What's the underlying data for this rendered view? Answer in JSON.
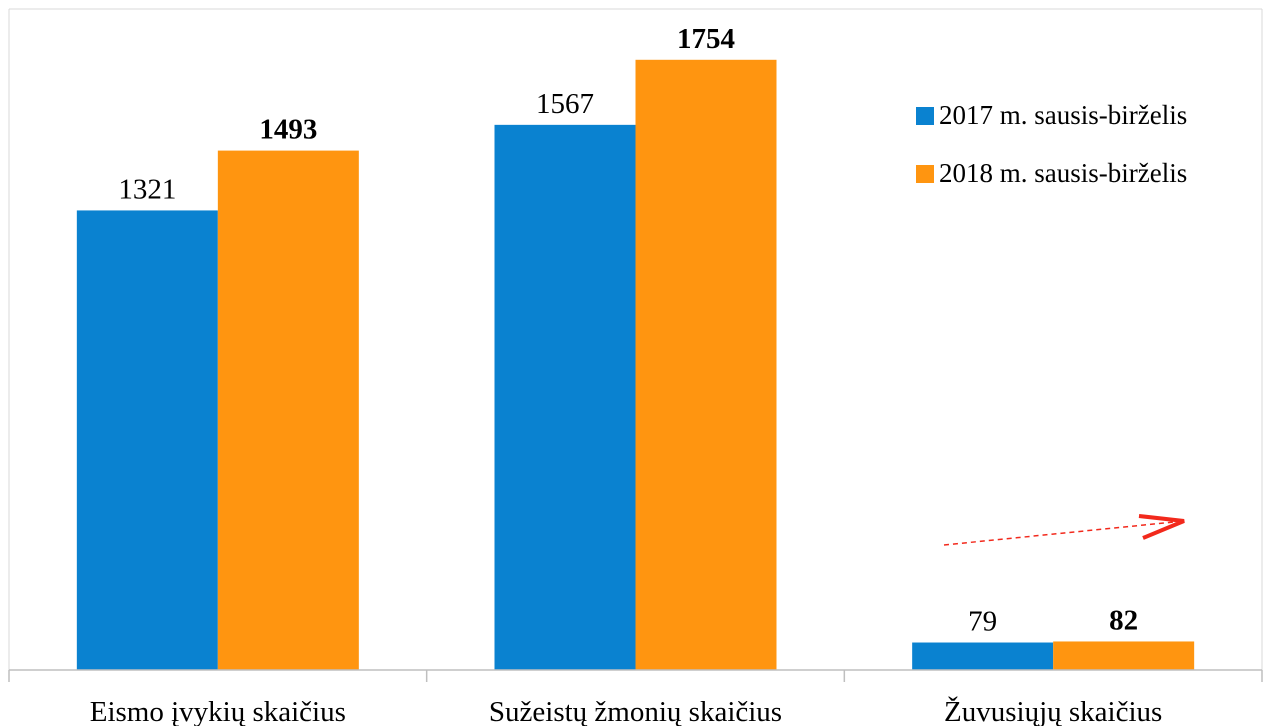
{
  "chart_data": {
    "type": "bar",
    "categories": [
      "Eismo įvykių skaičius",
      "Sužeistų žmonių skaičius",
      "Žuvusiųjų skaičius"
    ],
    "series": [
      {
        "name": "2017 m. sausis-birželis",
        "values": [
          1321,
          1567,
          79
        ],
        "color": "#0A82D0",
        "labels_bold": false
      },
      {
        "name": "2018 m. sausis-birželis",
        "values": [
          1493,
          1754,
          82
        ],
        "color": "#FF9510",
        "labels_bold": true
      }
    ],
    "ylim": [
      0,
      1900
    ],
    "grid": false,
    "legend_position": "top-right",
    "annotation": {
      "type": "dashed-arrow",
      "color": "#F2291C",
      "near_category": "Žuvusiųjų skaičius"
    }
  }
}
